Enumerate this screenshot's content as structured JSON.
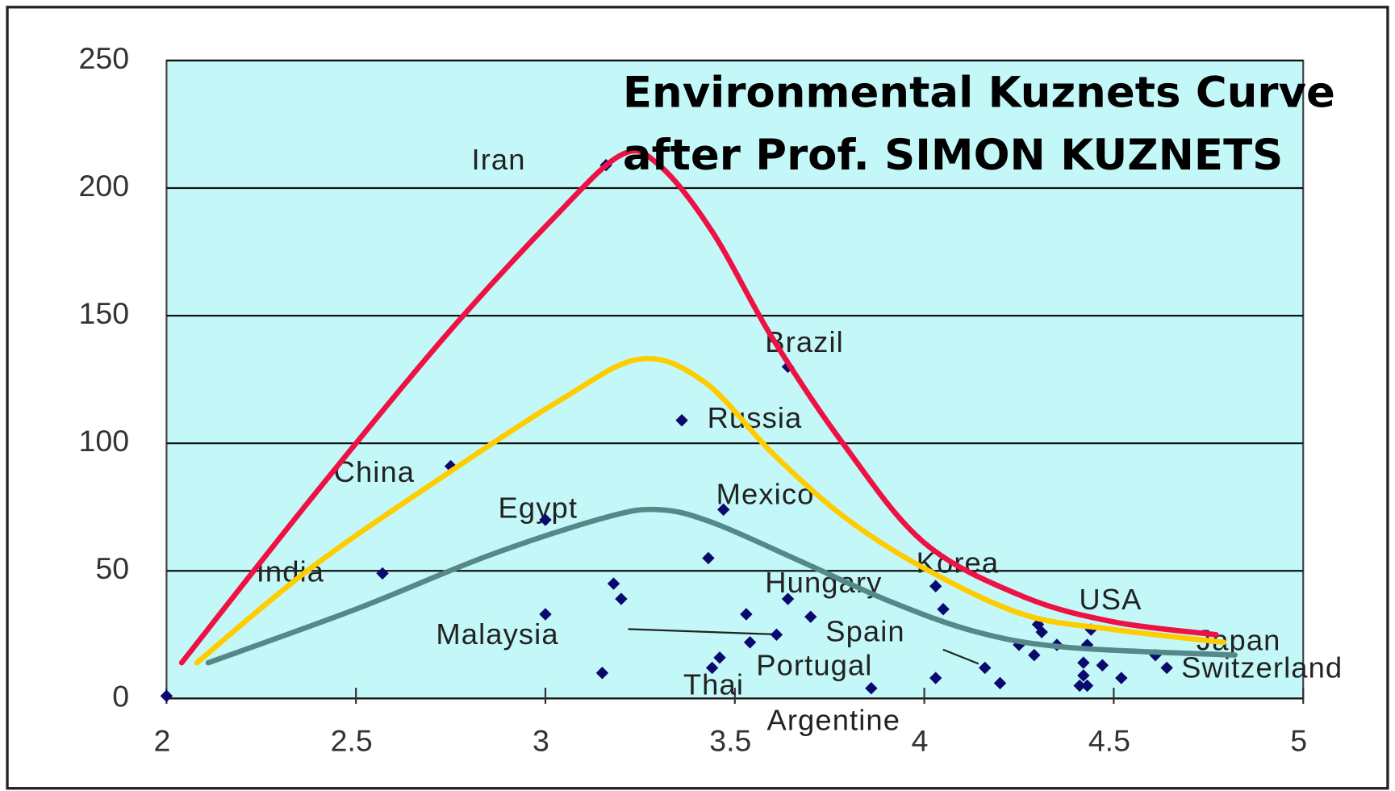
{
  "chart_data": {
    "type": "scatter",
    "title": "Environmental Kuznets Curve",
    "subtitle": "after Prof. SIMON KUZNETS",
    "xlim": [
      2,
      5
    ],
    "ylim": [
      0,
      250
    ],
    "xticks": [
      2,
      2.5,
      3,
      3.5,
      4,
      4.5,
      5
    ],
    "yticks": [
      0,
      50,
      100,
      150,
      200,
      250
    ],
    "grid": true,
    "annotations": [
      "Iran",
      "Brazil",
      "Russia",
      "China",
      "Mexico",
      "Egypt",
      "India",
      "Korea",
      "Hungary",
      "USA",
      "Malaysia",
      "Spain",
      "Japan",
      "Portugal",
      "Switzerland",
      "Thai",
      "Argentine"
    ],
    "series": [
      {
        "type": "scatter",
        "color": "#0a0a6e",
        "x": [
          2.0,
          3.16,
          3.64,
          3.36,
          2.75,
          3.47,
          3.0,
          2.57,
          3.43,
          3.18,
          3.2,
          3.64,
          4.03,
          4.05,
          3.0,
          3.53,
          3.7,
          3.61,
          3.54,
          3.46,
          3.44,
          3.15,
          3.86,
          4.03,
          4.16,
          4.2,
          4.25,
          4.29,
          4.3,
          4.31,
          4.35,
          4.44,
          4.43,
          4.42,
          4.47,
          4.42,
          4.41,
          4.43,
          4.52,
          4.61,
          4.64
        ],
        "values": [
          1,
          209,
          130,
          109,
          91,
          74,
          70,
          49,
          55,
          45,
          39,
          39,
          44,
          35,
          33,
          33,
          32,
          25,
          22,
          16,
          12,
          10,
          4,
          8,
          12,
          6,
          21,
          17,
          29,
          26,
          21,
          27,
          21,
          14,
          13,
          9,
          5,
          5,
          8,
          17,
          12
        ]
      },
      {
        "type": "line",
        "color": "#ee1144",
        "x": [
          2.04,
          2.38,
          2.73,
          3.02,
          3.2,
          3.3,
          3.44,
          3.6,
          3.79,
          4.0,
          4.26,
          4.5,
          4.77
        ],
        "values": [
          14,
          78,
          141,
          188,
          213,
          209,
          183,
          141,
          99,
          61,
          40,
          30,
          25
        ]
      },
      {
        "type": "line",
        "color": "#ffcc00",
        "x": [
          2.08,
          2.38,
          2.73,
          3.04,
          3.25,
          3.42,
          3.6,
          3.79,
          4.0,
          4.26,
          4.5,
          4.79
        ],
        "values": [
          14,
          51,
          87,
          117,
          133,
          124,
          96,
          71,
          51,
          33,
          27,
          22
        ]
      },
      {
        "type": "line",
        "color": "#558888",
        "x": [
          2.11,
          2.5,
          2.85,
          3.16,
          3.3,
          3.44,
          3.67,
          3.91,
          4.14,
          4.38,
          4.82
        ],
        "values": [
          14,
          35,
          56,
          71,
          74,
          69,
          54,
          38,
          26,
          20,
          17
        ]
      }
    ]
  }
}
